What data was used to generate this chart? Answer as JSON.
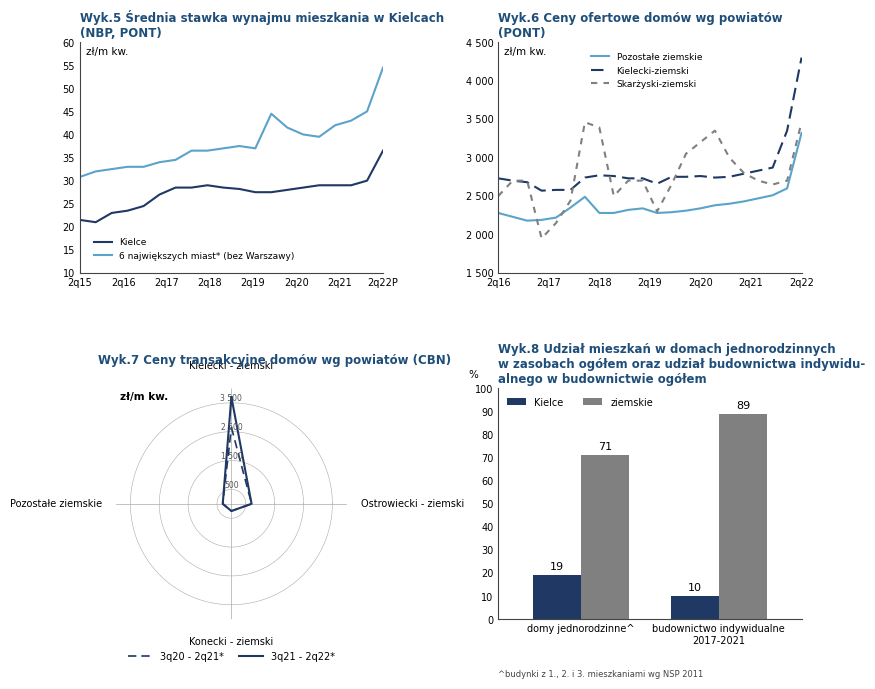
{
  "title_color": "#1F4E79",
  "title5": "Wyk.5 Średnia stawka wynajmu mieszkania w Kielcach\n(NBP, PONT)",
  "title6": "Wyk.6 Ceny ofertowe domów wg powiatów\n(PONT)",
  "title7": "Wyk.7 Ceny transakcyjne domów wg powiatów (CBN)",
  "title8": "Wyk.8 Udział mieszkań w domach jednorodzinnych\nw zasobach ogółem oraz udział budownictwa indywidu-\nalnego w budownictwie ogółem",
  "chart5": {
    "ylabel": "zł/m kw.",
    "ylim": [
      10,
      60
    ],
    "yticks": [
      10,
      15,
      20,
      25,
      30,
      35,
      40,
      45,
      50,
      55,
      60
    ],
    "x_labels": [
      "2q15",
      "2q16",
      "2q17",
      "2q18",
      "2q19",
      "2q20",
      "2q21",
      "2q22P"
    ],
    "kielce": [
      21.5,
      21.0,
      23.0,
      23.5,
      24.5,
      27.0,
      28.5,
      28.5,
      29.0,
      28.5,
      28.2,
      27.5,
      27.5,
      28.0,
      28.5,
      29.0,
      29.0,
      29.0,
      30.0,
      36.5
    ],
    "six_cities": [
      30.8,
      32.0,
      32.5,
      33.0,
      33.0,
      34.0,
      34.5,
      36.5,
      36.5,
      37.0,
      37.5,
      37.0,
      44.5,
      41.5,
      40.0,
      39.5,
      42.0,
      43.0,
      45.0,
      54.5
    ],
    "color_kielce": "#1F3864",
    "color_6cities": "#5BA3C9"
  },
  "chart6": {
    "ylabel": "zł/m kw.",
    "ylim": [
      1500,
      4500
    ],
    "yticks": [
      1500,
      2000,
      2500,
      3000,
      3500,
      4000,
      4500
    ],
    "x_labels": [
      "2q16",
      "2q17",
      "2q18",
      "2q19",
      "2q20",
      "2q21",
      "2q22"
    ],
    "pozostale": [
      2280,
      2230,
      2180,
      2190,
      2220,
      2350,
      2490,
      2280,
      2280,
      2320,
      2340,
      2280,
      2290,
      2310,
      2340,
      2380,
      2400,
      2430,
      2470,
      2510,
      2600,
      3320
    ],
    "kielecki": [
      2730,
      2700,
      2680,
      2570,
      2580,
      2580,
      2740,
      2770,
      2760,
      2730,
      2730,
      2660,
      2750,
      2750,
      2760,
      2740,
      2750,
      2790,
      2830,
      2870,
      3350,
      4300
    ],
    "skarzyski": [
      2500,
      2700,
      2700,
      1950,
      2150,
      2440,
      3460,
      3390,
      2500,
      2700,
      2700,
      2300,
      2650,
      3050,
      3200,
      3350,
      3000,
      2800,
      2700,
      2650,
      2700,
      3460
    ],
    "color_pozostale": "#5BA3C9",
    "color_kielecki": "#1F3864",
    "color_skarzyski": "#808080"
  },
  "chart7": {
    "categories": [
      "Kielecki - ziemski",
      "Ostrowiecki - ziemski",
      "Konecki - ziemski",
      "Pozostałe ziemskie"
    ],
    "period1": [
      2650,
      700,
      250,
      300
    ],
    "period2": [
      3700,
      700,
      250,
      300
    ],
    "color1": "#1F3864",
    "color2": "#1F3864",
    "rmax": 4000,
    "rticks": [
      500,
      1500,
      2500,
      3500
    ],
    "rtick_labels": [
      "500",
      "1 500",
      "2 500",
      "3 500"
    ],
    "ylabel": "zł/m kw.",
    "legend1": "3q20 - 2q21*",
    "legend2": "3q21 - 2q22*"
  },
  "chart8": {
    "categories": [
      "domy jednorodzinne^",
      "budownictwo indywidualne\n2017-2021"
    ],
    "kielce": [
      19,
      10
    ],
    "ziemskie": [
      71,
      89
    ],
    "color_kielce": "#1F3864",
    "color_ziemskie": "#808080",
    "ylabel": "%",
    "ylim": [
      0,
      100
    ],
    "yticks": [
      0,
      10,
      20,
      30,
      40,
      50,
      60,
      70,
      80,
      90,
      100
    ],
    "annotations_kielce": [
      19,
      10
    ],
    "annotations_ziemskie": [
      71,
      89
    ],
    "footnote": "^budynki z 1., 2. i 3. mieszkaniami wg NSP 2011",
    "legend_kielce": "Kielce",
    "legend_ziemskie": "ziemskie"
  }
}
